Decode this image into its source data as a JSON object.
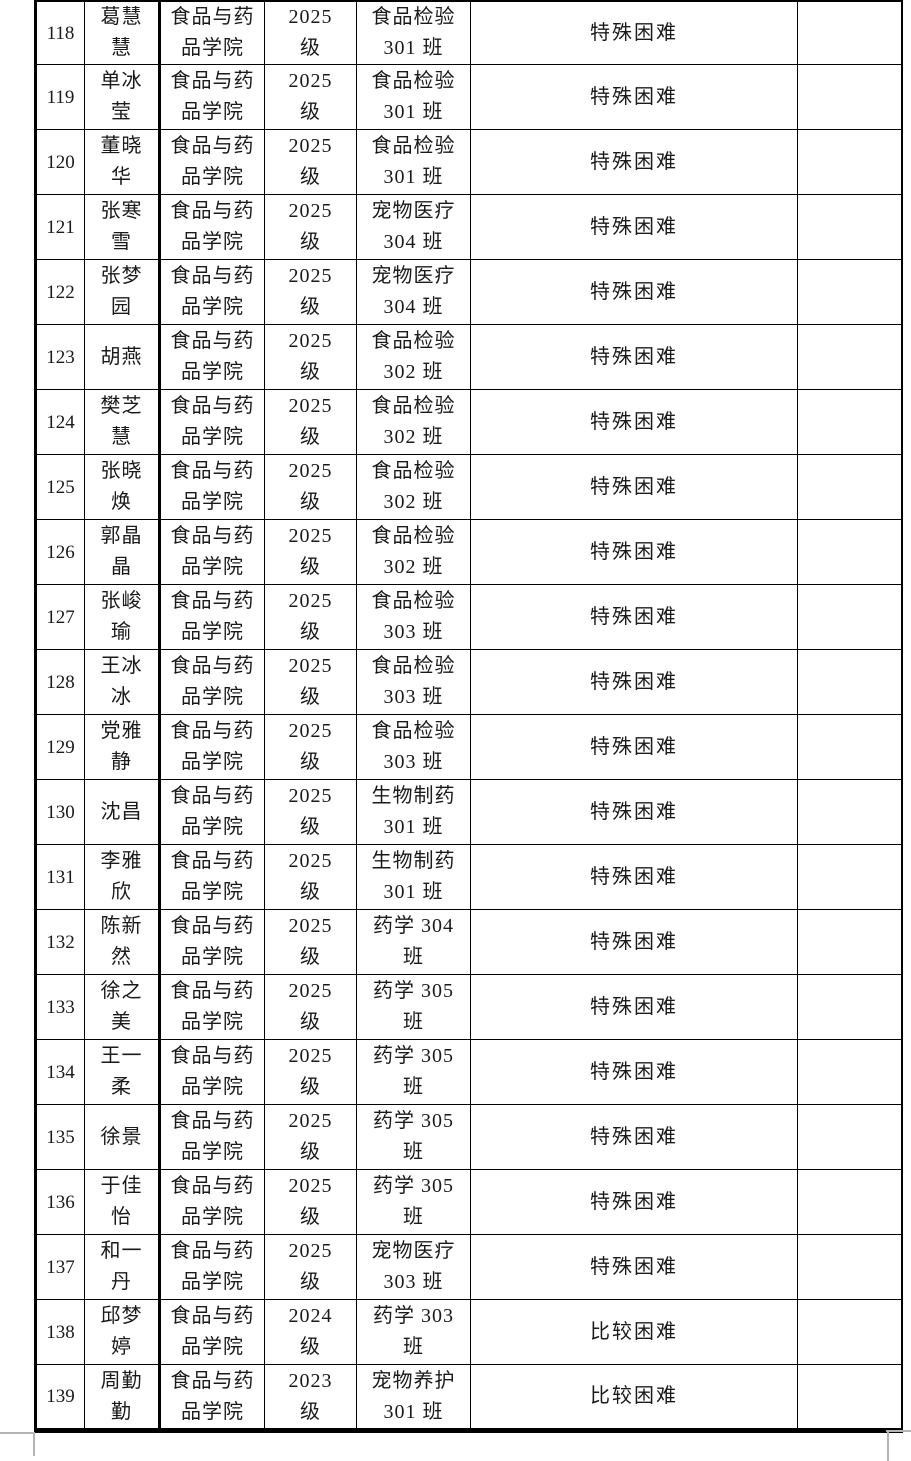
{
  "page": {
    "background": "#ffffff",
    "border_color": "#000000",
    "boundary_mark_color": "#b4b4b4"
  },
  "table": {
    "column_semantics": [
      "index",
      "name",
      "college",
      "grade",
      "class",
      "difficulty",
      "note"
    ],
    "rows": [
      [
        "118",
        "葛慧\n慧",
        "食品与药\n品学院",
        "2025\n级",
        "食品检验\n301 班",
        "特殊困难",
        ""
      ],
      [
        "119",
        "单冰\n莹",
        "食品与药\n品学院",
        "2025\n级",
        "食品检验\n301 班",
        "特殊困难",
        ""
      ],
      [
        "120",
        "董晓\n华",
        "食品与药\n品学院",
        "2025\n级",
        "食品检验\n301 班",
        "特殊困难",
        ""
      ],
      [
        "121",
        "张寒\n雪",
        "食品与药\n品学院",
        "2025\n级",
        "宠物医疗\n304 班",
        "特殊困难",
        ""
      ],
      [
        "122",
        "张梦\n园",
        "食品与药\n品学院",
        "2025\n级",
        "宠物医疗\n304 班",
        "特殊困难",
        ""
      ],
      [
        "123",
        "胡燕",
        "食品与药\n品学院",
        "2025\n级",
        "食品检验\n302 班",
        "特殊困难",
        ""
      ],
      [
        "124",
        "樊芝\n慧",
        "食品与药\n品学院",
        "2025\n级",
        "食品检验\n302 班",
        "特殊困难",
        ""
      ],
      [
        "125",
        "张晓\n焕",
        "食品与药\n品学院",
        "2025\n级",
        "食品检验\n302 班",
        "特殊困难",
        ""
      ],
      [
        "126",
        "郭晶\n晶",
        "食品与药\n品学院",
        "2025\n级",
        "食品检验\n302 班",
        "特殊困难",
        ""
      ],
      [
        "127",
        "张峻\n瑜",
        "食品与药\n品学院",
        "2025\n级",
        "食品检验\n303 班",
        "特殊困难",
        ""
      ],
      [
        "128",
        "王冰\n冰",
        "食品与药\n品学院",
        "2025\n级",
        "食品检验\n303 班",
        "特殊困难",
        ""
      ],
      [
        "129",
        "党雅\n静",
        "食品与药\n品学院",
        "2025\n级",
        "食品检验\n303 班",
        "特殊困难",
        ""
      ],
      [
        "130",
        "沈昌",
        "食品与药\n品学院",
        "2025\n级",
        "生物制药\n301 班",
        "特殊困难",
        ""
      ],
      [
        "131",
        "李雅\n欣",
        "食品与药\n品学院",
        "2025\n级",
        "生物制药\n301 班",
        "特殊困难",
        ""
      ],
      [
        "132",
        "陈新\n然",
        "食品与药\n品学院",
        "2025\n级",
        "药学 304\n班",
        "特殊困难",
        ""
      ],
      [
        "133",
        "徐之\n美",
        "食品与药\n品学院",
        "2025\n级",
        "药学 305\n班",
        "特殊困难",
        ""
      ],
      [
        "134",
        "王一\n柔",
        "食品与药\n品学院",
        "2025\n级",
        "药学 305\n班",
        "特殊困难",
        ""
      ],
      [
        "135",
        "徐景",
        "食品与药\n品学院",
        "2025\n级",
        "药学 305\n班",
        "特殊困难",
        ""
      ],
      [
        "136",
        "于佳\n怡",
        "食品与药\n品学院",
        "2025\n级",
        "药学 305\n班",
        "特殊困难",
        ""
      ],
      [
        "137",
        "和一\n丹",
        "食品与药\n品学院",
        "2025\n级",
        "宠物医疗\n303 班",
        "特殊困难",
        ""
      ],
      [
        "138",
        "邱梦\n婷",
        "食品与药\n品学院",
        "2024\n级",
        "药学 303\n班",
        "比较困难",
        ""
      ],
      [
        "139",
        "周勤\n勤",
        "食品与药\n品学院",
        "2023\n级",
        "宠物养护\n301 班",
        "比较困难",
        ""
      ]
    ]
  }
}
